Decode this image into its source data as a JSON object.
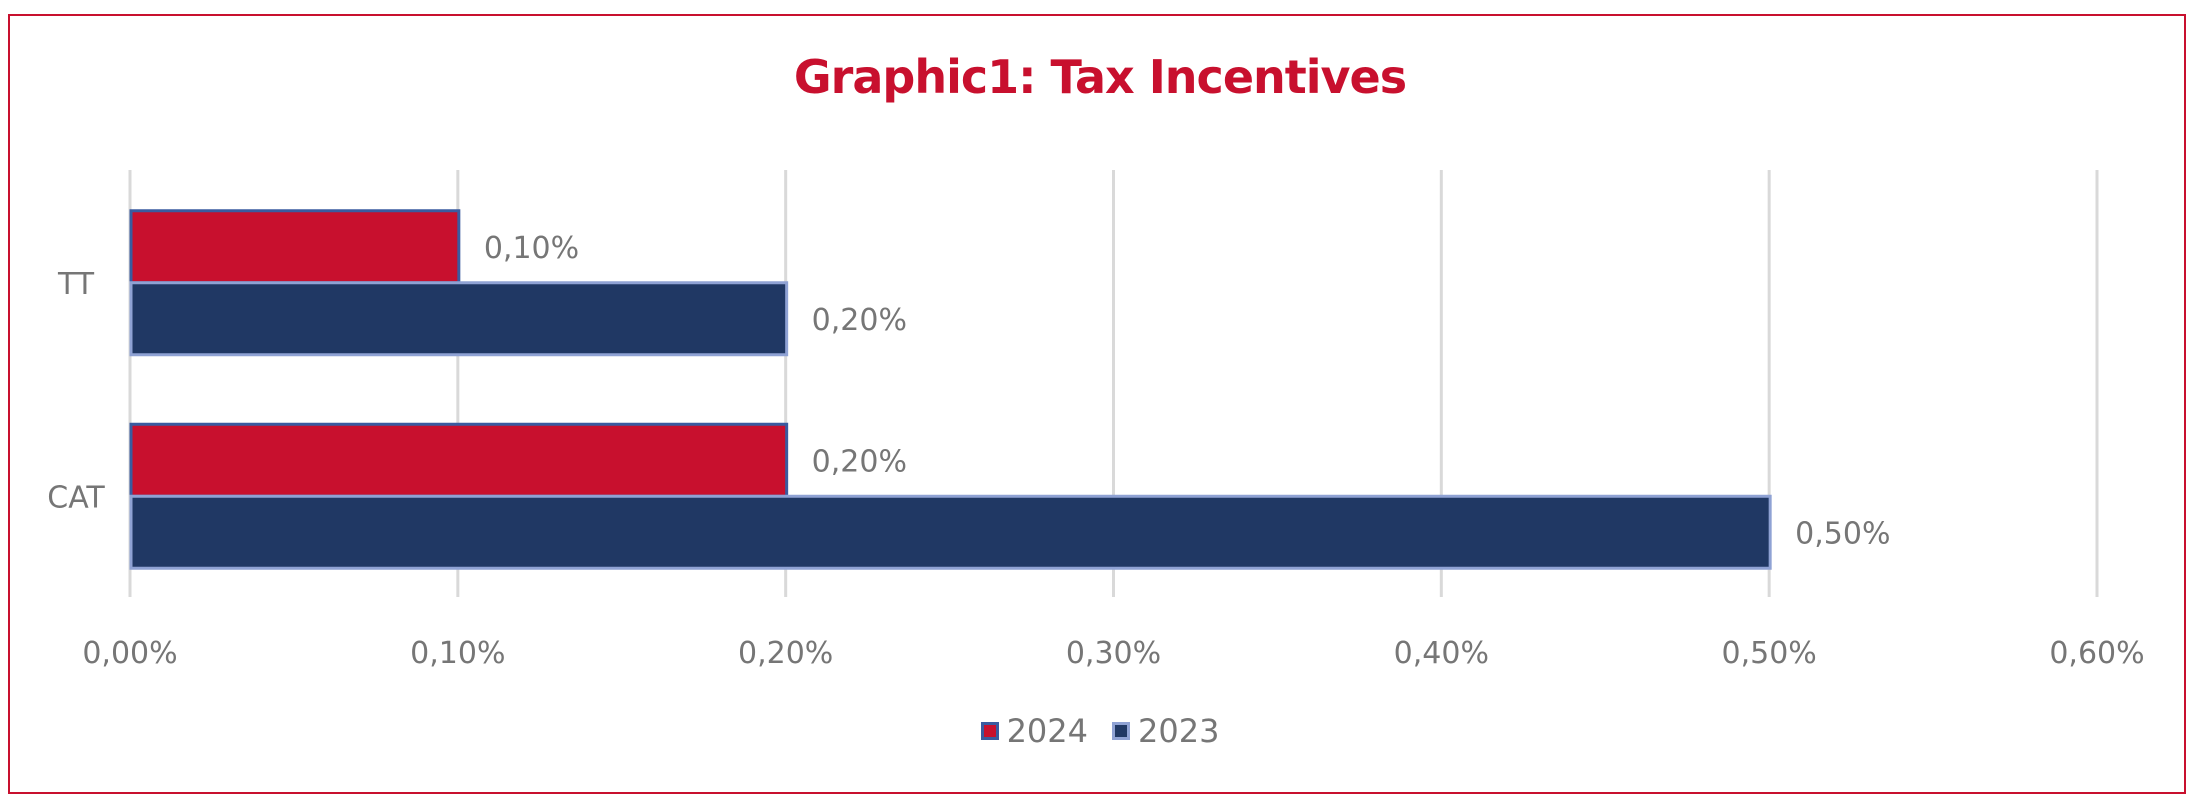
{
  "chart_data": {
    "type": "bar",
    "orientation": "horizontal",
    "title": "Graphic1: Tax Incentives",
    "categories": [
      "TT",
      "CAT"
    ],
    "series": [
      {
        "name": "2024",
        "values": [
          0.1,
          0.2
        ],
        "labels": [
          "0,10%",
          "0,20%"
        ],
        "color": "#c8102e",
        "outline": "#3a5ba0"
      },
      {
        "name": "2023",
        "values": [
          0.2,
          0.5
        ],
        "labels": [
          "0,20%",
          "0,50%"
        ],
        "color": "#203864",
        "outline": "#8fa2d4"
      }
    ],
    "xlabel": "",
    "ylabel": "",
    "xlim": [
      0,
      0.6
    ],
    "x_ticks": [
      0,
      0.1,
      0.2,
      0.3,
      0.4,
      0.5,
      0.6
    ],
    "x_tick_labels": [
      "0,00%",
      "0,10%",
      "0,20%",
      "0,30%",
      "0,40%",
      "0,50%",
      "0,60%"
    ],
    "grid": true,
    "legend_position": "bottom",
    "title_color": "#c8102e",
    "frame_color": "#c8102e"
  }
}
